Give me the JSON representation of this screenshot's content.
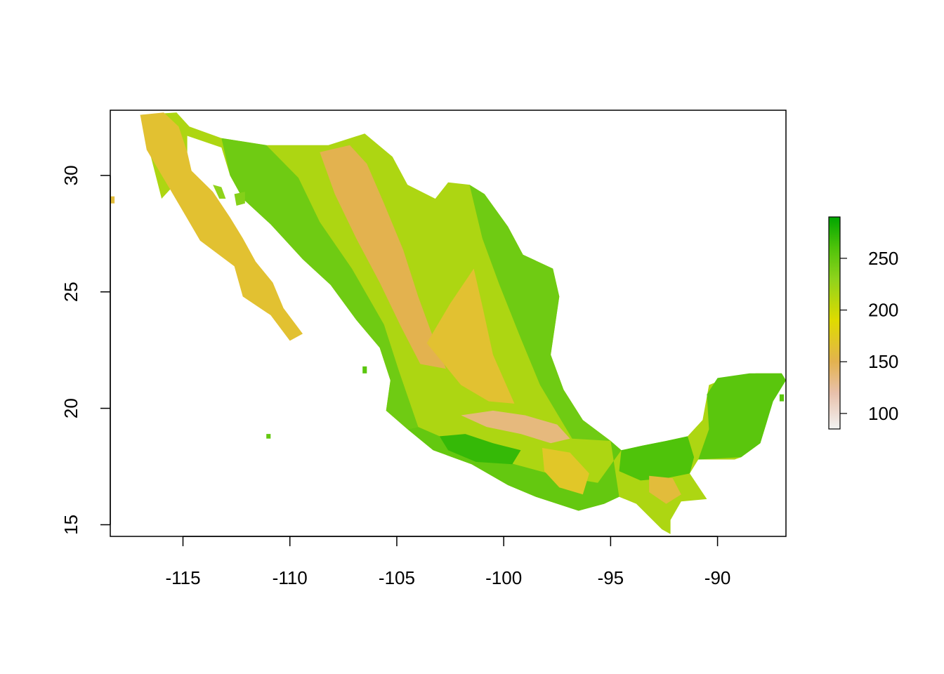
{
  "map": {
    "type": "raster",
    "title": "",
    "xlabel": "",
    "ylabel": "",
    "xlim": [
      -118.4,
      -86.8
    ],
    "ylim": [
      14.5,
      32.8
    ],
    "x_ticks": [
      {
        "value": -115,
        "label": "-115"
      },
      {
        "value": -110,
        "label": "-110"
      },
      {
        "value": -105,
        "label": "-105"
      },
      {
        "value": -100,
        "label": "-100"
      },
      {
        "value": -95,
        "label": "-95"
      },
      {
        "value": -90,
        "label": "-90"
      }
    ],
    "y_ticks": [
      {
        "value": 15,
        "label": "15"
      },
      {
        "value": 20,
        "label": "20"
      },
      {
        "value": 25,
        "label": "25"
      },
      {
        "value": 30,
        "label": "30"
      }
    ],
    "legend": {
      "placement": "right",
      "range": [
        85,
        290
      ],
      "ticks": [
        {
          "value": 100,
          "label": "100"
        },
        {
          "value": 150,
          "label": "150"
        },
        {
          "value": 200,
          "label": "200"
        },
        {
          "value": 250,
          "label": "250"
        }
      ],
      "color_stops": [
        {
          "value": 85,
          "color": "#f2f2f2"
        },
        {
          "value": 120,
          "color": "#e8c0aa"
        },
        {
          "value": 150,
          "color": "#e3b24f"
        },
        {
          "value": 190,
          "color": "#dfdb00"
        },
        {
          "value": 230,
          "color": "#8fd31c"
        },
        {
          "value": 260,
          "color": "#4fc30a"
        },
        {
          "value": 290,
          "color": "#00a600"
        }
      ]
    },
    "regions": [
      {
        "name": "mexico-mainland",
        "value": 215,
        "points": [
          [
            -117.0,
            32.6
          ],
          [
            -115.3,
            32.7
          ],
          [
            -114.7,
            32.1
          ],
          [
            -113.2,
            31.6
          ],
          [
            -111.1,
            31.3
          ],
          [
            -108.2,
            31.3
          ],
          [
            -106.5,
            31.8
          ],
          [
            -105.2,
            30.8
          ],
          [
            -104.5,
            29.6
          ],
          [
            -103.2,
            29.0
          ],
          [
            -102.6,
            29.7
          ],
          [
            -101.6,
            29.6
          ],
          [
            -100.9,
            29.2
          ],
          [
            -99.8,
            27.8
          ],
          [
            -99.1,
            26.6
          ],
          [
            -97.7,
            26.0
          ],
          [
            -97.4,
            24.8
          ],
          [
            -97.8,
            22.3
          ],
          [
            -97.2,
            20.8
          ],
          [
            -96.3,
            19.5
          ],
          [
            -95.0,
            18.6
          ],
          [
            -94.5,
            18.2
          ],
          [
            -93.5,
            18.4
          ],
          [
            -92.4,
            18.6
          ],
          [
            -91.4,
            18.8
          ],
          [
            -90.7,
            19.5
          ],
          [
            -90.4,
            21.0
          ],
          [
            -89.6,
            21.3
          ],
          [
            -88.2,
            21.5
          ],
          [
            -87.0,
            21.5
          ],
          [
            -86.8,
            21.2
          ],
          [
            -87.4,
            20.4
          ],
          [
            -87.7,
            19.4
          ],
          [
            -88.0,
            18.5
          ],
          [
            -88.9,
            17.9
          ],
          [
            -89.2,
            17.8
          ],
          [
            -90.9,
            17.8
          ],
          [
            -91.3,
            17.2
          ],
          [
            -90.5,
            16.1
          ],
          [
            -91.7,
            16.0
          ],
          [
            -92.2,
            15.2
          ],
          [
            -92.2,
            14.6
          ],
          [
            -92.6,
            14.8
          ],
          [
            -93.8,
            15.9
          ],
          [
            -94.6,
            16.2
          ],
          [
            -95.3,
            15.9
          ],
          [
            -96.5,
            15.6
          ],
          [
            -98.5,
            16.2
          ],
          [
            -99.8,
            16.7
          ],
          [
            -101.5,
            17.6
          ],
          [
            -103.3,
            18.2
          ],
          [
            -104.5,
            19.1
          ],
          [
            -105.5,
            19.9
          ],
          [
            -105.3,
            21.2
          ],
          [
            -105.8,
            22.6
          ],
          [
            -106.9,
            23.8
          ],
          [
            -108.1,
            25.3
          ],
          [
            -109.4,
            26.4
          ],
          [
            -110.3,
            27.3
          ],
          [
            -110.9,
            27.9
          ],
          [
            -112.2,
            29.0
          ],
          [
            -112.8,
            30.0
          ],
          [
            -113.2,
            31.2
          ],
          [
            -114.8,
            31.7
          ],
          [
            -114.8,
            31.0
          ],
          [
            -115.0,
            30.0
          ],
          [
            -116.0,
            29.0
          ]
        ]
      },
      {
        "name": "baja-california",
        "value": 165,
        "points": [
          [
            -117.0,
            32.6
          ],
          [
            -115.9,
            32.7
          ],
          [
            -115.2,
            32.1
          ],
          [
            -114.8,
            31.0
          ],
          [
            -114.6,
            30.2
          ],
          [
            -113.6,
            29.3
          ],
          [
            -112.8,
            28.2
          ],
          [
            -112.2,
            27.3
          ],
          [
            -111.6,
            26.3
          ],
          [
            -110.8,
            25.4
          ],
          [
            -110.3,
            24.3
          ],
          [
            -109.4,
            23.2
          ],
          [
            -110.0,
            22.9
          ],
          [
            -110.9,
            24.0
          ],
          [
            -112.2,
            24.8
          ],
          [
            -112.6,
            26.1
          ],
          [
            -114.2,
            27.2
          ],
          [
            -114.9,
            28.3
          ],
          [
            -115.6,
            29.4
          ],
          [
            -116.7,
            31.1
          ]
        ]
      },
      {
        "name": "yucatan-peninsula",
        "value": 255,
        "points": [
          [
            -90.9,
            17.8
          ],
          [
            -90.4,
            19.1
          ],
          [
            -90.5,
            20.6
          ],
          [
            -90.0,
            21.3
          ],
          [
            -88.5,
            21.5
          ],
          [
            -87.0,
            21.5
          ],
          [
            -86.8,
            21.2
          ],
          [
            -87.4,
            20.3
          ],
          [
            -87.7,
            19.4
          ],
          [
            -88.0,
            18.5
          ],
          [
            -88.9,
            17.9
          ]
        ]
      },
      {
        "name": "gulf-coastal-plain",
        "value": 245,
        "points": [
          [
            -101.6,
            29.6
          ],
          [
            -100.9,
            29.2
          ],
          [
            -99.8,
            27.8
          ],
          [
            -99.1,
            26.6
          ],
          [
            -97.7,
            26.0
          ],
          [
            -97.4,
            24.8
          ],
          [
            -97.8,
            22.3
          ],
          [
            -97.2,
            20.8
          ],
          [
            -96.3,
            19.5
          ],
          [
            -95.0,
            18.6
          ],
          [
            -96.8,
            18.7
          ],
          [
            -98.3,
            21.0
          ],
          [
            -99.2,
            23.0
          ],
          [
            -100.2,
            25.3
          ],
          [
            -101.0,
            27.3
          ]
        ]
      },
      {
        "name": "pacific-slope-west",
        "value": 245,
        "points": [
          [
            -113.2,
            31.6
          ],
          [
            -111.1,
            31.3
          ],
          [
            -109.6,
            29.9
          ],
          [
            -108.6,
            28.0
          ],
          [
            -107.1,
            26.0
          ],
          [
            -105.6,
            23.6
          ],
          [
            -104.9,
            21.6
          ],
          [
            -104.0,
            19.2
          ],
          [
            -104.5,
            19.1
          ],
          [
            -105.5,
            19.9
          ],
          [
            -105.3,
            21.2
          ],
          [
            -105.8,
            22.6
          ],
          [
            -106.9,
            23.8
          ],
          [
            -108.1,
            25.3
          ],
          [
            -109.4,
            26.4
          ],
          [
            -110.3,
            27.3
          ],
          [
            -110.9,
            27.9
          ],
          [
            -112.2,
            29.0
          ],
          [
            -112.8,
            30.0
          ]
        ]
      },
      {
        "name": "southern-pacific-slope",
        "value": 250,
        "points": [
          [
            -104.0,
            19.2
          ],
          [
            -101.5,
            18.2
          ],
          [
            -99.5,
            17.6
          ],
          [
            -97.5,
            17.1
          ],
          [
            -95.6,
            16.8
          ],
          [
            -94.5,
            18.2
          ],
          [
            -95.0,
            18.6
          ],
          [
            -94.6,
            16.2
          ],
          [
            -95.3,
            15.9
          ],
          [
            -96.5,
            15.6
          ],
          [
            -98.5,
            16.2
          ],
          [
            -99.8,
            16.7
          ],
          [
            -101.5,
            17.6
          ],
          [
            -103.3,
            18.2
          ],
          [
            -104.5,
            19.1
          ]
        ]
      },
      {
        "name": "chiapas-lowlands",
        "value": 260,
        "points": [
          [
            -94.5,
            18.2
          ],
          [
            -93.5,
            18.4
          ],
          [
            -92.4,
            18.6
          ],
          [
            -91.4,
            18.8
          ],
          [
            -91.1,
            17.9
          ],
          [
            -91.3,
            17.2
          ],
          [
            -92.4,
            17.0
          ],
          [
            -93.6,
            16.9
          ],
          [
            -94.6,
            17.3
          ]
        ]
      },
      {
        "name": "balsas-depression",
        "value": 270,
        "points": [
          [
            -103.0,
            18.8
          ],
          [
            -101.8,
            18.9
          ],
          [
            -100.5,
            18.5
          ],
          [
            -99.2,
            18.2
          ],
          [
            -99.6,
            17.6
          ],
          [
            -101.3,
            17.7
          ],
          [
            -102.6,
            18.2
          ]
        ]
      },
      {
        "name": "sierra-madre-occidental",
        "value": 150,
        "points": [
          [
            -108.6,
            31.0
          ],
          [
            -107.2,
            31.3
          ],
          [
            -106.4,
            30.5
          ],
          [
            -105.6,
            28.8
          ],
          [
            -104.7,
            26.8
          ],
          [
            -104.0,
            24.8
          ],
          [
            -103.2,
            22.8
          ],
          [
            -102.7,
            21.7
          ],
          [
            -103.9,
            21.9
          ],
          [
            -104.8,
            23.5
          ],
          [
            -105.8,
            25.4
          ],
          [
            -106.9,
            27.3
          ],
          [
            -107.9,
            29.2
          ]
        ]
      },
      {
        "name": "central-plateau",
        "value": 165,
        "points": [
          [
            -103.6,
            22.8
          ],
          [
            -102.5,
            24.5
          ],
          [
            -101.4,
            26.0
          ],
          [
            -101.0,
            24.4
          ],
          [
            -100.5,
            22.3
          ],
          [
            -99.5,
            20.2
          ],
          [
            -100.7,
            20.3
          ],
          [
            -102.0,
            21.0
          ]
        ]
      },
      {
        "name": "trans-volcanic-highlands",
        "value": 135,
        "points": [
          [
            -102.0,
            19.7
          ],
          [
            -100.5,
            19.9
          ],
          [
            -99.0,
            19.7
          ],
          [
            -97.5,
            19.3
          ],
          [
            -96.9,
            18.7
          ],
          [
            -97.8,
            18.5
          ],
          [
            -99.2,
            18.9
          ],
          [
            -100.8,
            19.2
          ]
        ]
      },
      {
        "name": "oaxaca-highlands",
        "value": 170,
        "points": [
          [
            -98.2,
            18.3
          ],
          [
            -96.9,
            18.1
          ],
          [
            -96.0,
            17.2
          ],
          [
            -96.3,
            16.3
          ],
          [
            -97.4,
            16.6
          ],
          [
            -98.1,
            17.3
          ]
        ]
      },
      {
        "name": "chiapas-highlands",
        "value": 160,
        "points": [
          [
            -93.2,
            17.1
          ],
          [
            -92.1,
            17.0
          ],
          [
            -91.7,
            16.3
          ],
          [
            -92.4,
            15.9
          ],
          [
            -93.2,
            16.4
          ]
        ]
      },
      {
        "name": "isla-tiburon",
        "value": 235,
        "points": [
          [
            -112.6,
            29.2
          ],
          [
            -112.1,
            29.3
          ],
          [
            -112.1,
            28.8
          ],
          [
            -112.5,
            28.7
          ]
        ]
      },
      {
        "name": "isla-angel-de-la-guarda",
        "value": 230,
        "points": [
          [
            -113.6,
            29.6
          ],
          [
            -113.2,
            29.5
          ],
          [
            -113.0,
            29.0
          ],
          [
            -113.3,
            29.0
          ]
        ]
      },
      {
        "name": "isla-tres-marias",
        "value": 255,
        "points": [
          [
            -106.6,
            21.8
          ],
          [
            -106.4,
            21.8
          ],
          [
            -106.4,
            21.5
          ],
          [
            -106.6,
            21.5
          ]
        ]
      },
      {
        "name": "isla-socorro",
        "value": 250,
        "points": [
          [
            -111.1,
            18.9
          ],
          [
            -110.9,
            18.9
          ],
          [
            -110.9,
            18.7
          ],
          [
            -111.1,
            18.7
          ]
        ]
      },
      {
        "name": "isla-cozumel",
        "value": 255,
        "points": [
          [
            -87.1,
            20.6
          ],
          [
            -86.9,
            20.6
          ],
          [
            -86.9,
            20.3
          ],
          [
            -87.1,
            20.3
          ]
        ]
      },
      {
        "name": "isla-guadalupe",
        "value": 160,
        "points": [
          [
            -118.4,
            29.1
          ],
          [
            -118.2,
            29.1
          ],
          [
            -118.2,
            28.8
          ],
          [
            -118.4,
            28.8
          ]
        ]
      }
    ]
  }
}
